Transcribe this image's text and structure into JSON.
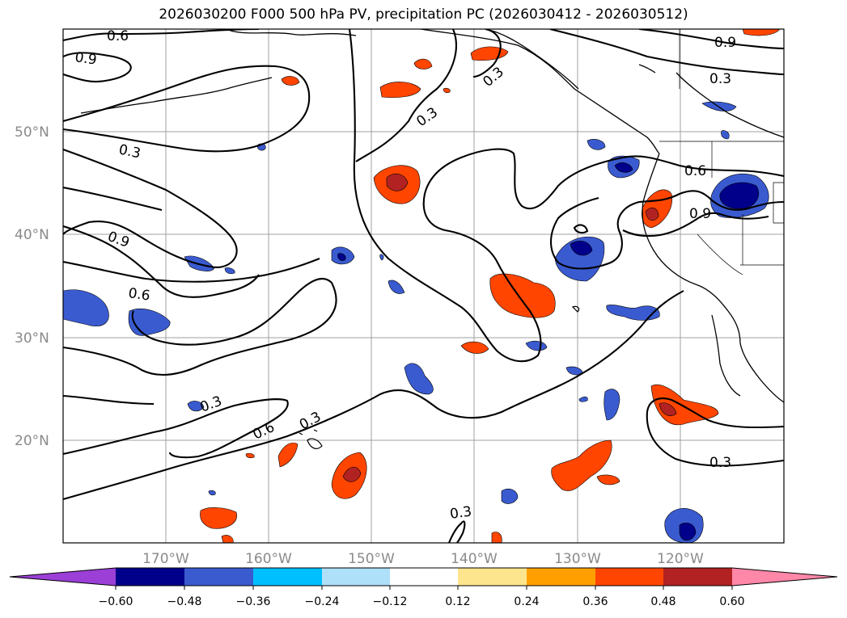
{
  "title": "2026030200 F000 500 hPa PV, precipitation PC (2026030412 - 2026030512)",
  "map": {
    "lat_labels": [
      "50°N",
      "40°N",
      "30°N",
      "20°N"
    ],
    "lon_labels": [
      "170°W",
      "160°W",
      "150°W",
      "140°W",
      "130°W",
      "120°W"
    ],
    "contour_labels": [
      "0.6",
      "0.9",
      "0.3",
      "0.3",
      "0.9",
      "0.3",
      "0.3",
      "0.9",
      "0.6",
      "0.6",
      "0.9",
      "0.3",
      "0.6",
      "0.3",
      "0.3",
      "0.3"
    ]
  },
  "colorbar": {
    "tick_labels": [
      "−0.60",
      "−0.48",
      "−0.36",
      "−0.24",
      "−0.12",
      "0.12",
      "0.24",
      "0.36",
      "0.48",
      "0.60"
    ],
    "colors": [
      "#9b3fd6",
      "#00008b",
      "#3a5bd0",
      "#00bfff",
      "#aee0fa",
      "#ffffff",
      "#fde58d",
      "#ffa000",
      "#ff4500",
      "#b22222",
      "#ff87a8"
    ]
  }
}
